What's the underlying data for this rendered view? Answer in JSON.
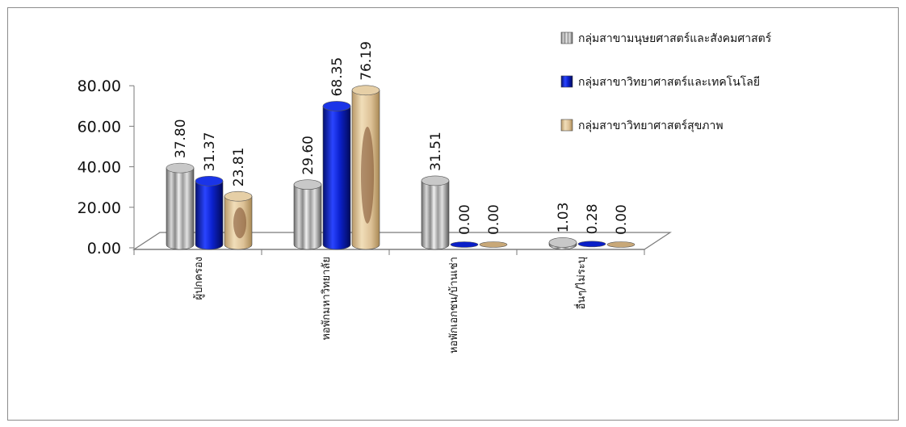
{
  "chart_data": {
    "type": "bar",
    "categories": [
      "ผู้ปกครอง",
      "หอพักมหาวิทยาลัย",
      "หอพักเอกชน/บ้านเช่า",
      "อื่นๆ/ไม่ระบุ"
    ],
    "series": [
      {
        "name": "กลุ่มสาขามนุษยศาสตร์และสังคมศาสตร์",
        "values": [
          37.8,
          29.6,
          31.51,
          1.03
        ],
        "labels": [
          "37.80",
          "29.60",
          "31.51",
          "1.03"
        ],
        "color": "#9a9a9a"
      },
      {
        "name": "กลุ่มสาขาวิทยาศาสตร์และเทคโนโลยี",
        "values": [
          31.37,
          68.35,
          0.0,
          0.28
        ],
        "labels": [
          "31.37",
          "68.35",
          "0.00",
          "0.28"
        ],
        "color": "#0a1fc8"
      },
      {
        "name": "กลุ่มสาขาวิทยาศาสตร์สุขภาพ",
        "values": [
          23.81,
          76.19,
          0.0,
          0.0
        ],
        "labels": [
          "23.81",
          "76.19",
          "0.00",
          "0.00"
        ],
        "color": "#d9bc94"
      }
    ],
    "yticks": [
      "0.00",
      "20.00",
      "40.00",
      "60.00",
      "80.00"
    ],
    "ylim": [
      0,
      80
    ],
    "legend_position": "top-right",
    "grid": false,
    "bar_style": "3d-cylinder"
  }
}
